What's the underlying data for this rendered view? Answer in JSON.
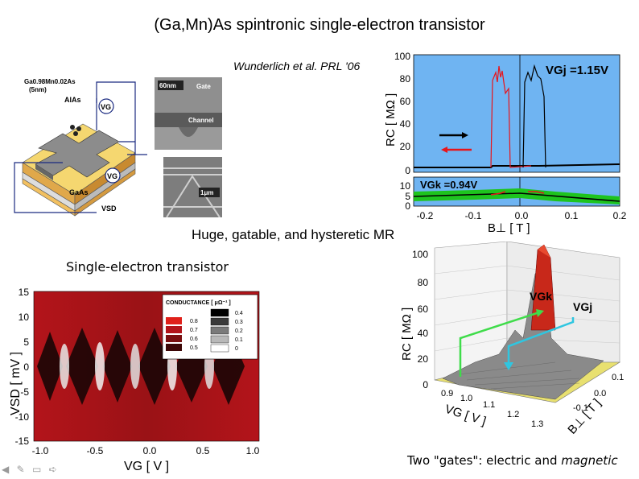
{
  "slide": {
    "title": "(Ga,Mn)As spintronic single-electron transistor",
    "citation": "Wunderlich et al. PRL '06",
    "mr_caption": "Huge, gatable, and hysteretic MR",
    "set_caption": "Single-electron transistor",
    "gates_caption_prefix": "Two \"gates\": electric and ",
    "gates_caption_emph": "magnetic"
  },
  "device_schematic": {
    "layer_top": "Ga0.98Mn0.02As",
    "layer_top_thickness": "(5nm)",
    "layer_barrier": "AlAs",
    "layer_substrate": "GaAs",
    "gate_label_1": "VG",
    "gate_label_2": "VG",
    "bias_label": "VSD"
  },
  "sem_images": {
    "scale_top": "60nm",
    "label_gate": "Gate",
    "label_channel": "Channel",
    "scale_bottom": "1μm"
  },
  "mr_plot": {
    "ylabel": "RC [ MΩ ]",
    "xlabel": "B⊥ [ T ]",
    "top_annotation": "VGj =1.15V",
    "bottom_annotation": "VGk =0.94V",
    "top_yticks": [
      "100",
      "80",
      "60",
      "40",
      "20",
      "0"
    ],
    "bottom_yticks": [
      "10",
      "5",
      "0"
    ],
    "xticks": [
      "-0.2",
      "-0.1",
      "0.0",
      "0.1",
      "0.2"
    ],
    "colors": {
      "background": "#6fb4f2",
      "up_sweep": "#000000",
      "down_sweep": "#e8141a",
      "green_band": "#1ec41e"
    }
  },
  "conductance_map": {
    "ylabel": "VSD [ mV ]",
    "xlabel": "VG [ V ]",
    "yticks": [
      "15",
      "10",
      "5",
      "0",
      "-5",
      "-10",
      "-15"
    ],
    "xticks": [
      "-1.0",
      "-0.5",
      "0.0",
      "0.5",
      "1.0"
    ],
    "legend_title": "CONDUCTANCE [ μΩ⁻¹ ]",
    "legend_left": [
      "0.8",
      "0.7",
      "0.6",
      "0.5"
    ],
    "legend_right": [
      "0.4",
      "0.3",
      "0.2",
      "0.1",
      "0"
    ],
    "legend_left_colors": [
      "#e0201a",
      "#b3141a",
      "#7a0f10",
      "#3d0707"
    ],
    "legend_right_colors": [
      "#000000",
      "#3a3a3a",
      "#7a7a7a",
      "#b8b8b8",
      "#ffffff"
    ]
  },
  "surface_plot": {
    "zlabel": "RC [ MΩ ]",
    "zticks": [
      "100",
      "80",
      "60",
      "40",
      "20",
      "0"
    ],
    "vg_label": "VG [ V ]",
    "vg_ticks": [
      "0.9",
      "1.0",
      "1.1",
      "1.2",
      "1.3"
    ],
    "b_label": "B⊥ [ T ]",
    "b_ticks": [
      "0.1",
      "0.0",
      "-0.1"
    ],
    "marker_k": "VGk",
    "marker_j": "VGj",
    "colors": {
      "marker_k": "#3fdc4a",
      "marker_j": "#2fc6e0",
      "floor": "#e8e070"
    }
  },
  "nav": {
    "icons": "◀ ✎ ▭ ➪"
  }
}
